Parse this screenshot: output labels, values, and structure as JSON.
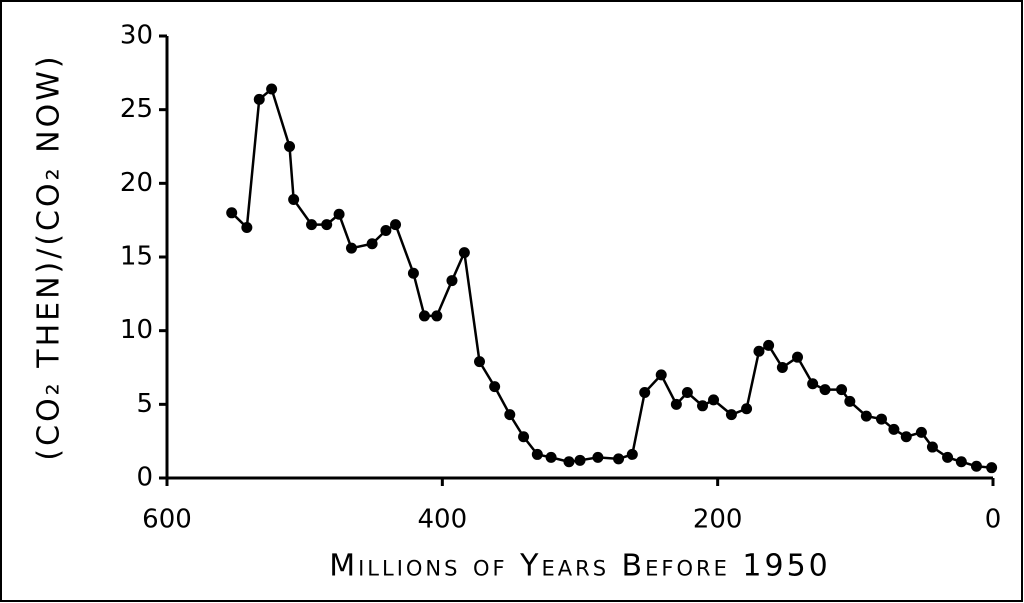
{
  "chart_data": {
    "type": "line",
    "xlabel": "Millions of Years Before 1950",
    "ylabel": "(CO₂ THEN)/(CO₂ NOW)",
    "x": [
      553,
      542,
      533,
      524,
      511,
      508,
      495,
      484,
      475,
      466,
      451,
      441,
      434,
      421,
      413,
      404,
      393,
      384,
      373,
      362,
      351,
      341,
      331,
      321,
      308,
      300,
      287,
      272,
      262,
      253,
      241,
      230,
      222,
      211,
      203,
      190,
      179,
      170,
      163,
      153,
      142,
      131,
      122,
      110,
      104,
      92,
      81,
      72,
      63,
      52,
      44,
      33,
      23,
      12,
      1
    ],
    "values": [
      18.0,
      17.0,
      25.7,
      26.4,
      22.5,
      18.9,
      17.2,
      17.2,
      17.9,
      15.6,
      15.9,
      16.8,
      17.2,
      13.9,
      11.0,
      11.0,
      13.4,
      15.3,
      7.9,
      6.2,
      4.3,
      2.8,
      1.6,
      1.4,
      1.1,
      1.2,
      1.4,
      1.3,
      1.6,
      5.8,
      7.0,
      5.0,
      5.8,
      4.9,
      5.3,
      4.3,
      4.7,
      8.6,
      9.0,
      7.5,
      8.2,
      6.4,
      6.0,
      6.0,
      5.2,
      4.2,
      4.0,
      3.3,
      2.8,
      3.1,
      2.1,
      1.4,
      1.1,
      0.8,
      0.7
    ],
    "color": "#000000",
    "xlim": [
      600,
      0
    ],
    "xticks": [
      600,
      400,
      200,
      0
    ],
    "ylim": [
      0,
      30
    ],
    "yticks": [
      0,
      5,
      10,
      15,
      20,
      25,
      30
    ]
  }
}
